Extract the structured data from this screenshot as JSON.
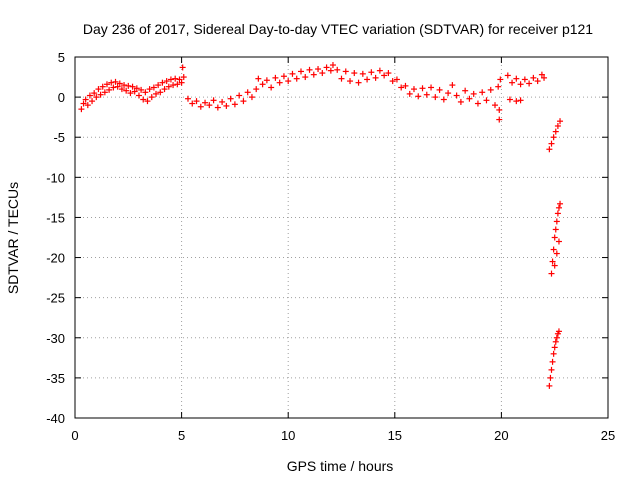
{
  "chart_data": {
    "type": "scatter",
    "title": "Day 236 of 2017, Sidereal Day-to-day VTEC variation (SDTVAR) for receiver p121",
    "xlabel": "GPS time / hours",
    "ylabel": "SDTVAR / TECUs",
    "xlim": [
      0,
      25
    ],
    "ylim": [
      -40,
      5
    ],
    "xticks": [
      "0",
      "5",
      "10",
      "15",
      "20",
      "25"
    ],
    "xtick_values": [
      0,
      5,
      10,
      15,
      20,
      25
    ],
    "yticks": [
      "5",
      "0",
      "-5",
      "-10",
      "-15",
      "-20",
      "-25",
      "-30",
      "-35",
      "-40"
    ],
    "ytick_values": [
      5,
      0,
      -5,
      -10,
      -15,
      -20,
      -25,
      -30,
      -35,
      -40
    ],
    "grid": true,
    "marker": "+",
    "series": [
      {
        "color": "#ff0000",
        "points": [
          [
            0.3,
            -1.5
          ],
          [
            0.4,
            -0.8
          ],
          [
            0.5,
            -0.3
          ],
          [
            0.6,
            -1.0
          ],
          [
            0.7,
            0.2
          ],
          [
            0.8,
            -0.5
          ],
          [
            0.9,
            0.5
          ],
          [
            1.0,
            0.0
          ],
          [
            1.1,
            1.0
          ],
          [
            1.2,
            0.3
          ],
          [
            1.3,
            1.3
          ],
          [
            1.4,
            0.6
          ],
          [
            1.5,
            1.6
          ],
          [
            1.6,
            0.9
          ],
          [
            1.7,
            1.8
          ],
          [
            1.8,
            1.2
          ],
          [
            1.9,
            1.9
          ],
          [
            2.0,
            1.3
          ],
          [
            2.1,
            1.7
          ],
          [
            2.2,
            1.0
          ],
          [
            2.3,
            1.5
          ],
          [
            2.4,
            0.8
          ],
          [
            2.5,
            1.4
          ],
          [
            2.6,
            0.5
          ],
          [
            2.7,
            1.3
          ],
          [
            2.8,
            0.7
          ],
          [
            2.9,
            1.1
          ],
          [
            3.0,
            0.2
          ],
          [
            3.1,
            0.9
          ],
          [
            3.2,
            -0.3
          ],
          [
            3.3,
            0.6
          ],
          [
            3.4,
            -0.5
          ],
          [
            3.5,
            1.0
          ],
          [
            3.6,
            0.0
          ],
          [
            3.7,
            1.2
          ],
          [
            3.8,
            0.4
          ],
          [
            3.9,
            1.5
          ],
          [
            4.0,
            0.6
          ],
          [
            4.1,
            1.8
          ],
          [
            4.2,
            1.0
          ],
          [
            4.3,
            2.0
          ],
          [
            4.4,
            1.3
          ],
          [
            4.5,
            2.2
          ],
          [
            4.6,
            1.5
          ],
          [
            4.7,
            2.3
          ],
          [
            4.8,
            1.6
          ],
          [
            4.9,
            2.2
          ],
          [
            5.0,
            1.8
          ],
          [
            5.1,
            2.5
          ],
          [
            5.05,
            3.7
          ],
          [
            5.3,
            -0.2
          ],
          [
            5.5,
            -0.8
          ],
          [
            5.7,
            -0.5
          ],
          [
            5.9,
            -1.2
          ],
          [
            6.1,
            -0.7
          ],
          [
            6.3,
            -1.0
          ],
          [
            6.5,
            -0.4
          ],
          [
            6.7,
            -1.3
          ],
          [
            6.9,
            -0.6
          ],
          [
            7.1,
            -1.1
          ],
          [
            7.3,
            -0.2
          ],
          [
            7.5,
            -0.9
          ],
          [
            7.7,
            0.2
          ],
          [
            7.9,
            -0.5
          ],
          [
            8.1,
            0.6
          ],
          [
            8.3,
            0.0
          ],
          [
            8.5,
            1.0
          ],
          [
            8.6,
            2.3
          ],
          [
            8.8,
            1.6
          ],
          [
            9.0,
            2.1
          ],
          [
            9.2,
            1.2
          ],
          [
            9.4,
            2.4
          ],
          [
            9.6,
            1.8
          ],
          [
            9.8,
            2.6
          ],
          [
            10.0,
            2.0
          ],
          [
            10.2,
            2.9
          ],
          [
            10.4,
            2.3
          ],
          [
            10.6,
            3.2
          ],
          [
            10.8,
            2.5
          ],
          [
            11.0,
            3.4
          ],
          [
            11.2,
            2.8
          ],
          [
            11.4,
            3.5
          ],
          [
            11.6,
            3.0
          ],
          [
            11.8,
            3.7
          ],
          [
            12.0,
            3.3
          ],
          [
            12.1,
            4.0
          ],
          [
            12.3,
            3.4
          ],
          [
            12.5,
            2.3
          ],
          [
            12.7,
            3.2
          ],
          [
            12.9,
            2.0
          ],
          [
            13.1,
            3.0
          ],
          [
            13.3,
            1.8
          ],
          [
            13.5,
            2.9
          ],
          [
            13.7,
            2.2
          ],
          [
            13.9,
            3.1
          ],
          [
            14.1,
            2.4
          ],
          [
            14.3,
            3.3
          ],
          [
            14.5,
            2.7
          ],
          [
            14.7,
            3.0
          ],
          [
            14.9,
            2.0
          ],
          [
            15.1,
            2.2
          ],
          [
            15.3,
            1.2
          ],
          [
            15.5,
            1.4
          ],
          [
            15.7,
            0.4
          ],
          [
            15.9,
            1.0
          ],
          [
            16.1,
            0.1
          ],
          [
            16.3,
            1.1
          ],
          [
            16.5,
            0.3
          ],
          [
            16.7,
            1.2
          ],
          [
            16.9,
            0.0
          ],
          [
            17.1,
            0.9
          ],
          [
            17.3,
            -0.3
          ],
          [
            17.5,
            0.5
          ],
          [
            17.7,
            1.5
          ],
          [
            17.9,
            0.2
          ],
          [
            18.1,
            -0.6
          ],
          [
            18.3,
            0.8
          ],
          [
            18.5,
            -0.2
          ],
          [
            18.7,
            0.4
          ],
          [
            18.9,
            -0.8
          ],
          [
            19.1,
            0.6
          ],
          [
            19.3,
            -0.4
          ],
          [
            19.5,
            0.9
          ],
          [
            19.7,
            -1.0
          ],
          [
            19.85,
            1.3
          ],
          [
            19.9,
            -2.8
          ],
          [
            19.95,
            2.2
          ],
          [
            19.9,
            -1.6
          ],
          [
            20.3,
            2.7
          ],
          [
            20.5,
            1.8
          ],
          [
            20.7,
            2.3
          ],
          [
            20.9,
            1.6
          ],
          [
            21.1,
            2.2
          ],
          [
            21.3,
            1.7
          ],
          [
            21.5,
            2.4
          ],
          [
            21.7,
            2.0
          ],
          [
            21.9,
            2.8
          ],
          [
            22.0,
            2.4
          ],
          [
            20.4,
            -0.3
          ],
          [
            20.7,
            -0.5
          ],
          [
            20.9,
            -0.4
          ],
          [
            22.25,
            -6.5
          ],
          [
            22.35,
            -5.8
          ],
          [
            22.45,
            -5.0
          ],
          [
            22.55,
            -4.3
          ],
          [
            22.65,
            -3.6
          ],
          [
            22.75,
            -3.0
          ],
          [
            22.35,
            -22.0
          ],
          [
            22.4,
            -20.5
          ],
          [
            22.45,
            -19.0
          ],
          [
            22.5,
            -17.5
          ],
          [
            22.55,
            -16.5
          ],
          [
            22.6,
            -15.5
          ],
          [
            22.65,
            -14.5
          ],
          [
            22.7,
            -13.8
          ],
          [
            22.75,
            -13.3
          ],
          [
            22.5,
            -21.0
          ],
          [
            22.6,
            -19.5
          ],
          [
            22.7,
            -18.0
          ],
          [
            22.25,
            -36.0
          ],
          [
            22.3,
            -35.0
          ],
          [
            22.35,
            -34.0
          ],
          [
            22.4,
            -33.0
          ],
          [
            22.45,
            -32.0
          ],
          [
            22.5,
            -31.2
          ],
          [
            22.55,
            -30.5
          ],
          [
            22.6,
            -30.0
          ],
          [
            22.65,
            -29.5
          ],
          [
            22.7,
            -29.2
          ]
        ]
      }
    ]
  }
}
